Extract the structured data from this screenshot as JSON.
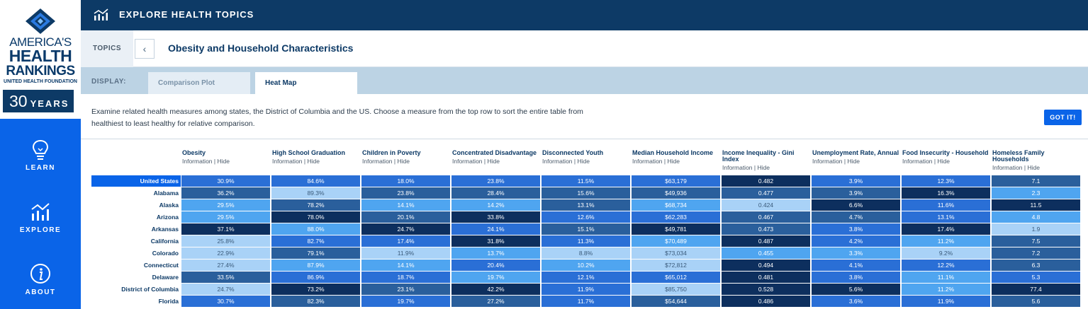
{
  "logo": {
    "line1": "AMERICA'S",
    "line2": "HEALTH",
    "line3": "RANKINGS",
    "line4": "UNITED HEALTH FOUNDATION",
    "years_num": "30",
    "years_word": "YEARS"
  },
  "nav": [
    {
      "label": "LEARN",
      "icon": "lightbulb-icon"
    },
    {
      "label": "EXPLORE",
      "icon": "chart-icon"
    },
    {
      "label": "ABOUT",
      "icon": "info-icon"
    }
  ],
  "header": {
    "title": "EXPLORE HEALTH TOPICS"
  },
  "topics": {
    "label": "TOPICS",
    "back": "‹",
    "title": "Obesity and Household Characteristics"
  },
  "display": {
    "label": "DISPLAY:",
    "tabs": [
      "Comparison Plot",
      "Heat Map"
    ],
    "active_tab": "Heat Map"
  },
  "info": {
    "text": "Examine related health measures among states, the District of Columbia and the US. Choose a measure from the top row to sort the entire table from healthiest to least healthy for relative comparison.",
    "button": "GOT IT!"
  },
  "colors": {
    "sidebar": "#0a64e8",
    "header": "#0d3a66",
    "display_bar": "#bcd3e4"
  },
  "table": {
    "info_link": "Information",
    "hide_link": "Hide",
    "columns": [
      "Obesity",
      "High School Graduation",
      "Children in Poverty",
      "Concentrated Disadvantage",
      "Disconnected Youth",
      "Median Household Income",
      "Income Inequality - Gini Index",
      "Unemployment Rate, Annual",
      "Food Insecurity - Household",
      "Homeless Family Households"
    ],
    "rows": [
      {
        "state": "United States",
        "values": [
          "30.9%",
          "84.6%",
          "18.0%",
          "23.8%",
          "11.5%",
          "$63,179",
          "0.482",
          "3.9%",
          "12.3%",
          "7.1"
        ],
        "shades": [
          2,
          2,
          2,
          2,
          2,
          2,
          4,
          2,
          2,
          3
        ]
      },
      {
        "state": "Alabama",
        "values": [
          "36.2%",
          "89.3%",
          "23.8%",
          "28.4%",
          "15.6%",
          "$49,936",
          "0.477",
          "3.9%",
          "16.3%",
          "2.3"
        ],
        "shades": [
          3,
          0,
          3,
          3,
          3,
          3,
          3,
          3,
          4,
          1
        ]
      },
      {
        "state": "Alaska",
        "values": [
          "29.5%",
          "78.2%",
          "14.1%",
          "14.2%",
          "13.1%",
          "$68,734",
          "0.424",
          "6.6%",
          "11.6%",
          "11.5"
        ],
        "shades": [
          1,
          3,
          1,
          1,
          3,
          1,
          0,
          4,
          2,
          4
        ]
      },
      {
        "state": "Arizona",
        "values": [
          "29.5%",
          "78.0%",
          "20.1%",
          "33.8%",
          "12.6%",
          "$62,283",
          "0.467",
          "4.7%",
          "13.1%",
          "4.8"
        ],
        "shades": [
          1,
          4,
          3,
          4,
          2,
          2,
          3,
          3,
          2,
          1
        ]
      },
      {
        "state": "Arkansas",
        "values": [
          "37.1%",
          "88.0%",
          "24.7%",
          "24.1%",
          "15.1%",
          "$49,781",
          "0.473",
          "3.8%",
          "17.4%",
          "1.9"
        ],
        "shades": [
          4,
          1,
          4,
          2,
          3,
          4,
          3,
          2,
          4,
          0
        ]
      },
      {
        "state": "California",
        "values": [
          "25.8%",
          "82.7%",
          "17.4%",
          "31.8%",
          "11.3%",
          "$70,489",
          "0.487",
          "4.2%",
          "11.2%",
          "7.5"
        ],
        "shades": [
          0,
          2,
          2,
          4,
          2,
          1,
          4,
          2,
          1,
          3
        ]
      },
      {
        "state": "Colorado",
        "values": [
          "22.9%",
          "79.1%",
          "11.9%",
          "13.7%",
          "8.8%",
          "$73,034",
          "0.455",
          "3.3%",
          "9.2%",
          "7.2"
        ],
        "shades": [
          0,
          3,
          0,
          1,
          0,
          0,
          1,
          1,
          0,
          3
        ]
      },
      {
        "state": "Connecticut",
        "values": [
          "27.4%",
          "87.9%",
          "14.1%",
          "20.4%",
          "10.2%",
          "$72,812",
          "0.494",
          "4.1%",
          "12.2%",
          "6.3"
        ],
        "shades": [
          0,
          1,
          1,
          2,
          1,
          0,
          4,
          2,
          2,
          3
        ]
      },
      {
        "state": "Delaware",
        "values": [
          "33.5%",
          "86.9%",
          "18.7%",
          "19.7%",
          "12.1%",
          "$65,012",
          "0.481",
          "3.8%",
          "11.1%",
          "5.3"
        ],
        "shades": [
          3,
          2,
          2,
          1,
          2,
          2,
          4,
          2,
          1,
          2
        ]
      },
      {
        "state": "District of Columbia",
        "values": [
          "24.7%",
          "73.2%",
          "23.1%",
          "42.2%",
          "11.9%",
          "$85,750",
          "0.528",
          "5.6%",
          "11.2%",
          "77.4"
        ],
        "shades": [
          0,
          4,
          3,
          4,
          2,
          0,
          4,
          4,
          1,
          4
        ]
      },
      {
        "state": "Florida",
        "values": [
          "30.7%",
          "82.3%",
          "19.7%",
          "27.2%",
          "11.7%",
          "$54,644",
          "0.486",
          "3.6%",
          "11.9%",
          "5.6"
        ],
        "shades": [
          2,
          3,
          2,
          3,
          2,
          3,
          4,
          2,
          2,
          3
        ]
      }
    ],
    "shade_colors": [
      "#a9d2f7",
      "#4fa5f0",
      "#2a6fd6",
      "#2a5f9c",
      "#0d2f5e"
    ],
    "shade_text": [
      "#3a5a7a",
      "#ffffff",
      "#ffffff",
      "#ffffff",
      "#ffffff"
    ]
  }
}
